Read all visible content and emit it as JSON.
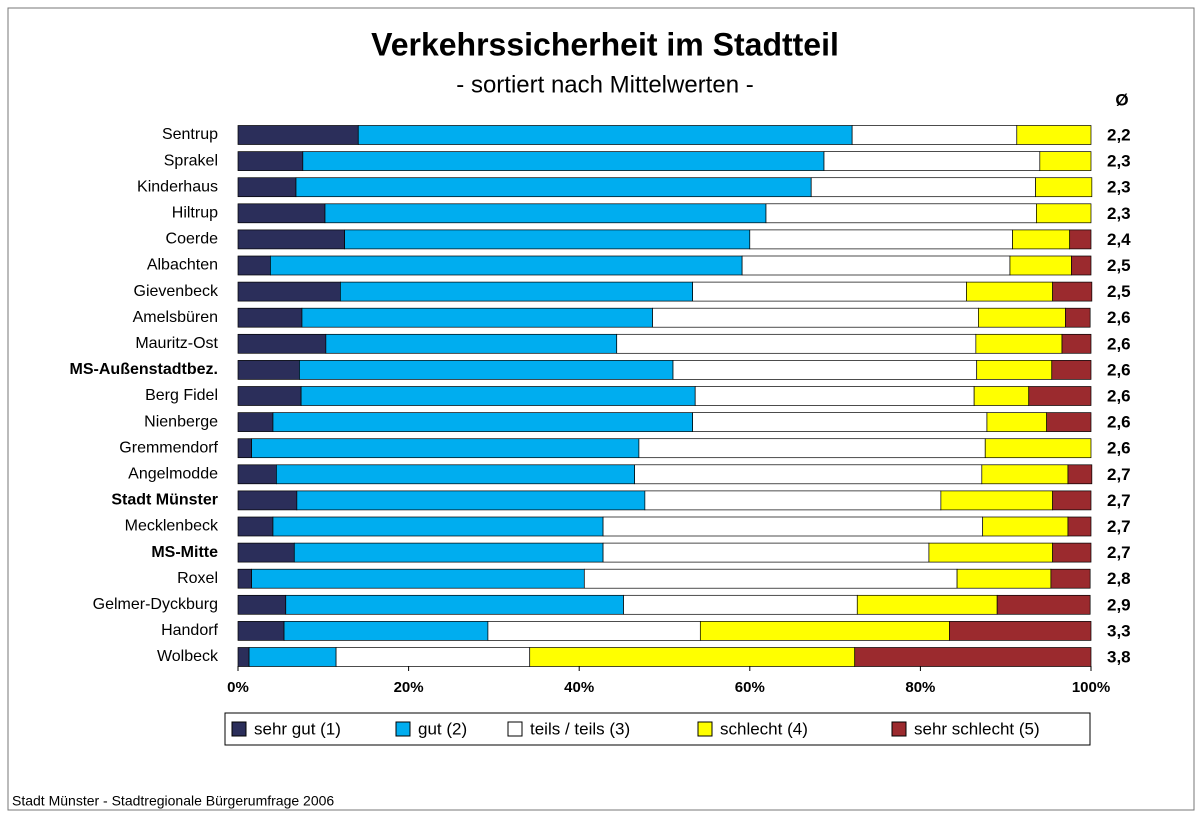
{
  "chart_data": {
    "type": "stacked_barh",
    "title": "Verkehrssicherheit im Stadtteil",
    "subtitle": "- sortiert nach Mittelwerten -",
    "means_header": "Ø",
    "source": "Stadt Münster - Stadtregionale Bürgerumfrage 2006",
    "categories": [
      "Sentrup",
      "Sprakel",
      "Kinderhaus",
      "Hiltrup",
      "Coerde",
      "Albachten",
      "Gievenbeck",
      "Amelsbüren",
      "Mauritz-Ost",
      "MS-Außenstadtbez.",
      "Berg Fidel",
      "Nienberge",
      "Gremmendorf",
      "Angelmodde",
      "Stadt Münster",
      "Mecklenbeck",
      "MS-Mitte",
      "Roxel",
      "Gelmer-Dyckburg",
      "Handorf",
      "Wolbeck"
    ],
    "bold_categories": [
      9,
      14,
      16
    ],
    "means": [
      "2,2",
      "2,3",
      "2,3",
      "2,3",
      "2,4",
      "2,5",
      "2,5",
      "2,6",
      "2,6",
      "2,6",
      "2,6",
      "2,6",
      "2,6",
      "2,7",
      "2,7",
      "2,7",
      "2,7",
      "2,8",
      "2,9",
      "3,3",
      "3,8"
    ],
    "series": [
      {
        "name": "sehr gut (1)",
        "color": "#2b2e5a",
        "values": [
          14.1,
          7.6,
          6.8,
          10.2,
          12.5,
          3.8,
          12.0,
          7.5,
          10.3,
          7.2,
          7.4,
          4.1,
          1.6,
          4.5,
          6.9,
          4.1,
          6.6,
          1.6,
          5.6,
          5.4,
          1.3
        ]
      },
      {
        "name": "gut (2)",
        "color": "#00adef",
        "values": [
          57.9,
          61.1,
          60.4,
          51.7,
          47.5,
          55.3,
          41.3,
          41.1,
          34.1,
          43.8,
          46.2,
          49.2,
          45.4,
          42.0,
          40.8,
          38.7,
          36.2,
          39.0,
          39.6,
          23.9,
          10.2
        ]
      },
      {
        "name": "teils / teils (3)",
        "color": "#ffffff",
        "values": [
          19.3,
          25.3,
          26.3,
          31.7,
          30.8,
          31.4,
          32.1,
          38.2,
          42.1,
          35.6,
          32.7,
          34.5,
          40.6,
          40.7,
          34.7,
          44.5,
          38.2,
          43.7,
          27.4,
          24.9,
          22.7
        ]
      },
      {
        "name": "schlecht (4)",
        "color": "#ffff00",
        "values": [
          8.7,
          6.0,
          6.6,
          6.4,
          6.7,
          7.2,
          10.1,
          10.2,
          10.1,
          8.8,
          6.4,
          7.0,
          12.4,
          10.1,
          13.1,
          10.0,
          14.5,
          11.0,
          16.4,
          29.2,
          38.1
        ]
      },
      {
        "name": "sehr schlecht (5)",
        "color": "#9b2a2e",
        "values": [
          0,
          0,
          0,
          0,
          2.5,
          2.3,
          4.6,
          2.9,
          3.4,
          4.6,
          7.3,
          5.2,
          0,
          2.8,
          4.5,
          2.7,
          4.5,
          4.6,
          10.9,
          16.6,
          27.7
        ]
      }
    ],
    "xlim": [
      0,
      100
    ],
    "xticks": [
      {
        "value": 0,
        "label": "0%"
      },
      {
        "value": 20,
        "label": "20%"
      },
      {
        "value": 40,
        "label": "40%"
      },
      {
        "value": 60,
        "label": "60%"
      },
      {
        "value": 80,
        "label": "80%"
      },
      {
        "value": 100,
        "label": "100%"
      }
    ],
    "legend": "bottom"
  }
}
